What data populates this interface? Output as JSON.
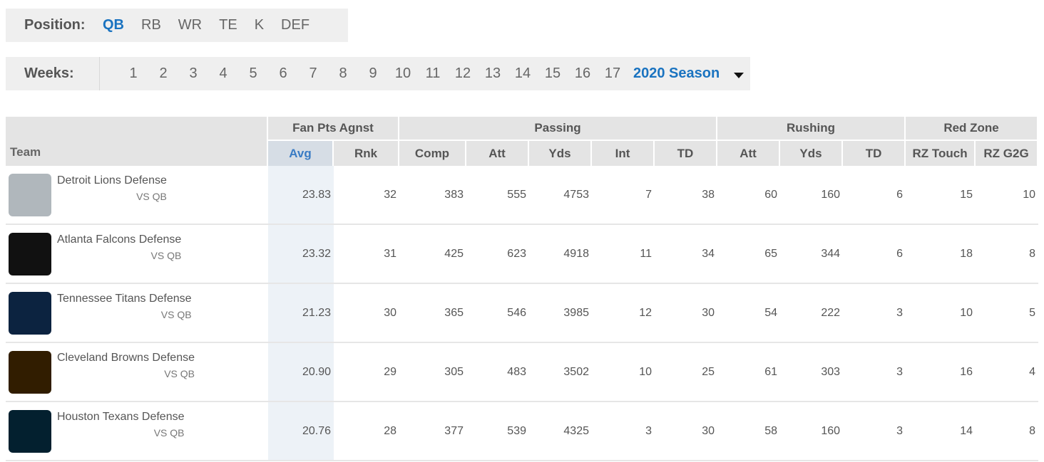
{
  "position": {
    "label": "Position:",
    "options": [
      "QB",
      "RB",
      "WR",
      "TE",
      "K",
      "DEF"
    ],
    "active": "QB"
  },
  "weeks": {
    "label": "Weeks:",
    "options": [
      "1",
      "2",
      "3",
      "4",
      "5",
      "6",
      "7",
      "8",
      "9",
      "10",
      "11",
      "12",
      "13",
      "14",
      "15",
      "16",
      "17"
    ],
    "season_label": "2020 Season"
  },
  "table": {
    "groups": {
      "fan_pts": "Fan Pts Agnst",
      "passing": "Passing",
      "rushing": "Rushing",
      "red_zone": "Red Zone"
    },
    "team_header": "Team",
    "columns": [
      "Avg",
      "Rnk",
      "Comp",
      "Att",
      "Yds",
      "Int",
      "TD",
      "Att",
      "Yds",
      "TD",
      "RZ Touch",
      "RZ G2G"
    ],
    "sorted_column": "Avg",
    "rows": [
      {
        "team": "Detroit Lions Defense",
        "sub": "VS QB",
        "logo": "lions-logo-icon",
        "logo_color": "#b0b7bc",
        "values": [
          "23.83",
          "32",
          "383",
          "555",
          "4753",
          "7",
          "38",
          "60",
          "160",
          "6",
          "15",
          "10"
        ]
      },
      {
        "team": "Atlanta Falcons Defense",
        "sub": "VS QB",
        "logo": "falcons-logo-icon",
        "logo_color": "#111111",
        "values": [
          "23.32",
          "31",
          "425",
          "623",
          "4918",
          "11",
          "34",
          "65",
          "344",
          "6",
          "18",
          "8"
        ]
      },
      {
        "team": "Tennessee Titans Defense",
        "sub": "VS QB",
        "logo": "titans-logo-icon",
        "logo_color": "#0c2340",
        "values": [
          "21.23",
          "30",
          "365",
          "546",
          "3985",
          "12",
          "30",
          "54",
          "222",
          "3",
          "10",
          "5"
        ]
      },
      {
        "team": "Cleveland Browns Defense",
        "sub": "VS QB",
        "logo": "browns-logo-icon",
        "logo_color": "#311d00",
        "values": [
          "20.90",
          "29",
          "305",
          "483",
          "3502",
          "10",
          "25",
          "61",
          "303",
          "3",
          "16",
          "4"
        ]
      },
      {
        "team": "Houston Texans Defense",
        "sub": "VS QB",
        "logo": "texans-logo-icon",
        "logo_color": "#03202f",
        "values": [
          "20.76",
          "28",
          "377",
          "539",
          "4325",
          "3",
          "30",
          "58",
          "160",
          "3",
          "14",
          "8"
        ]
      }
    ]
  },
  "colors": {
    "accent": "#1a73c0",
    "header_bg": "#e4e4e4",
    "sorted_bg": "#edf2f7"
  }
}
